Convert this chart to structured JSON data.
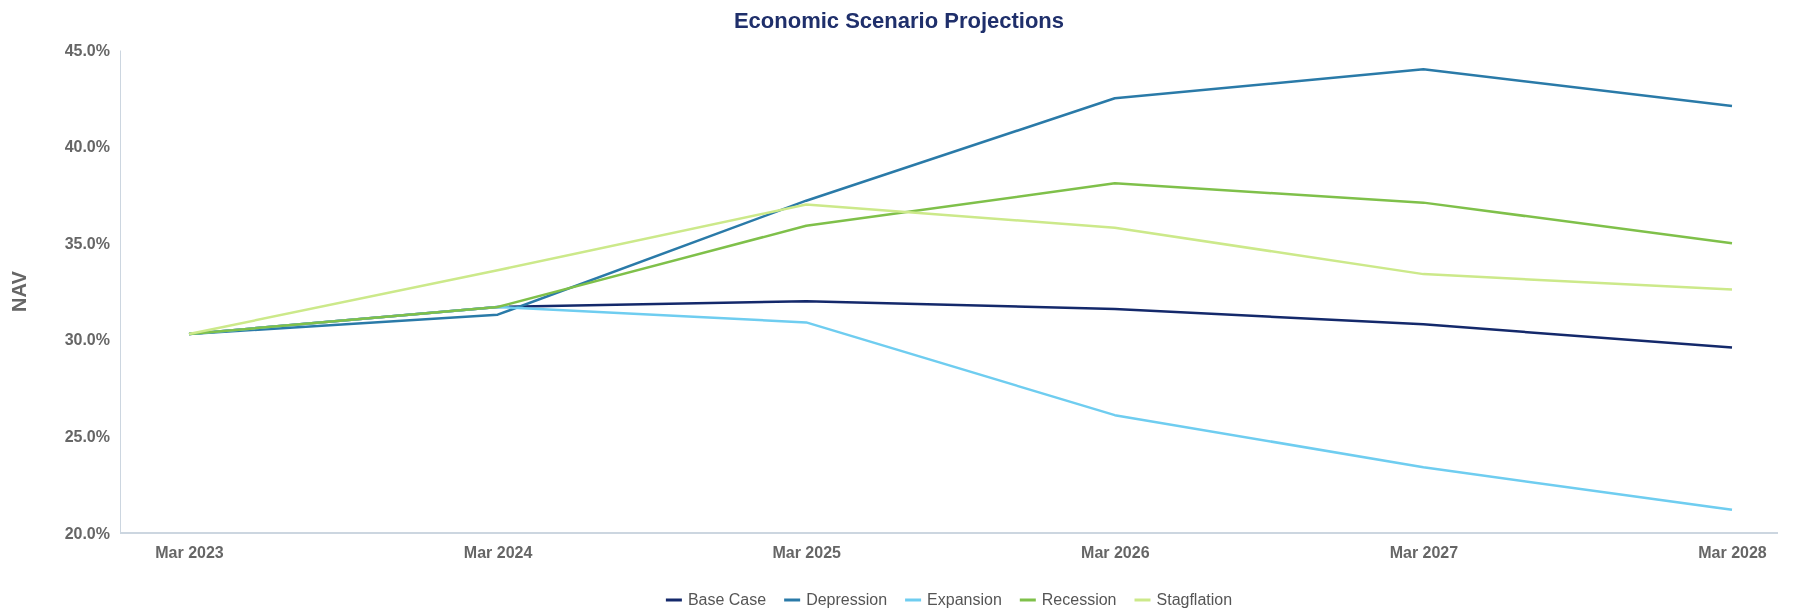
{
  "chart_data": {
    "type": "line",
    "title": "Economic Scenario Projections",
    "ylabel": "NAV",
    "categories": [
      "Mar 2023",
      "Mar 2024",
      "Mar 2025",
      "Mar 2026",
      "Mar 2027",
      "Mar 2028"
    ],
    "series": [
      {
        "name": "Base Case",
        "color": "#14296b",
        "values": [
          30.3,
          31.7,
          32.0,
          31.6,
          30.8,
          29.6
        ]
      },
      {
        "name": "Depression",
        "color": "#2a7aa8",
        "values": [
          30.3,
          31.3,
          37.2,
          42.5,
          44.0,
          42.1
        ]
      },
      {
        "name": "Expansion",
        "color": "#6fcdf0",
        "values": [
          30.3,
          31.7,
          30.9,
          26.1,
          23.4,
          21.2
        ]
      },
      {
        "name": "Recession",
        "color": "#7fc04a",
        "values": [
          30.3,
          31.7,
          35.9,
          38.1,
          37.1,
          35.0
        ]
      },
      {
        "name": "Stagflation",
        "color": "#cce98a",
        "values": [
          30.3,
          33.6,
          37.0,
          35.8,
          33.4,
          32.6
        ]
      }
    ],
    "ylim": [
      20,
      45
    ],
    "yticks": [
      {
        "value": 20,
        "label": "20.0%"
      },
      {
        "value": 25,
        "label": "25.0%"
      },
      {
        "value": 30,
        "label": "30.0%"
      },
      {
        "value": 35,
        "label": "35.0%"
      },
      {
        "value": 40,
        "label": "40.0%"
      },
      {
        "value": 45,
        "label": "45.0%"
      }
    ],
    "grid": false,
    "legend": "bottom",
    "marker": "none",
    "line_style": "solid"
  }
}
